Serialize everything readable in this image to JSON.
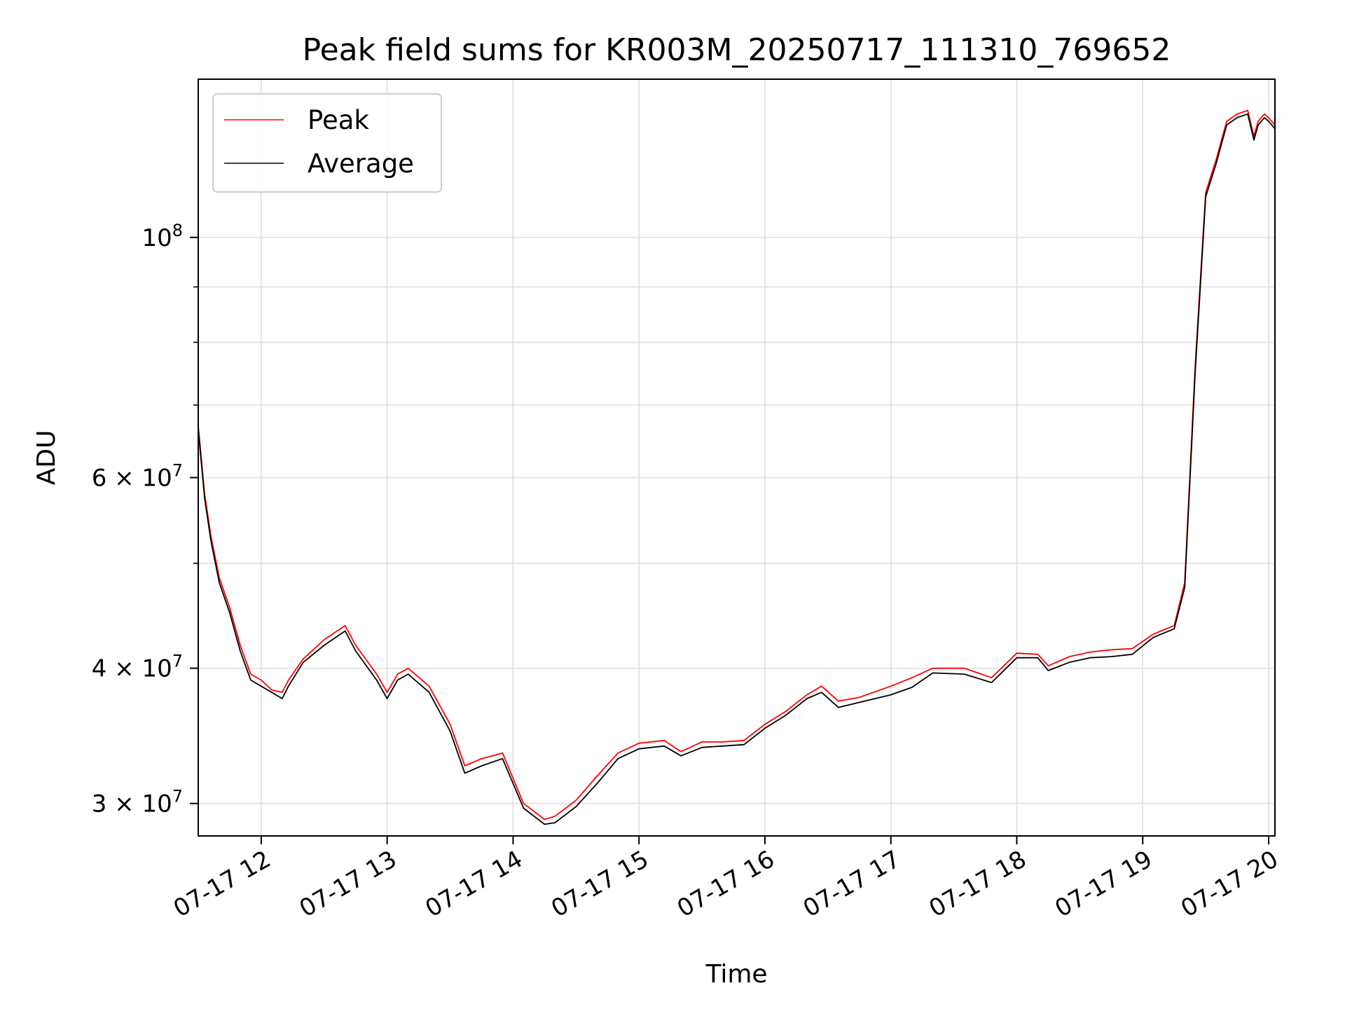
{
  "chart_data": {
    "type": "line",
    "title": "Peak field sums for KR003M_20250717_111310_769652",
    "xlabel": "Time",
    "ylabel": "ADU",
    "y_scale": "log",
    "ylim": [
      28000000,
      140000000
    ],
    "xlim": [
      "2025-07-17 11:30",
      "2025-07-17 20:03"
    ],
    "grid": true,
    "legend_position": "top-left",
    "x_tick_labels": [
      "07-17 12",
      "07-17 13",
      "07-17 14",
      "07-17 15",
      "07-17 16",
      "07-17 17",
      "07-17 18",
      "07-17 19",
      "07-17 20"
    ],
    "x_tick_times": [
      "2025-07-17 12:00",
      "2025-07-17 13:00",
      "2025-07-17 14:00",
      "2025-07-17 15:00",
      "2025-07-17 16:00",
      "2025-07-17 17:00",
      "2025-07-17 18:00",
      "2025-07-17 19:00",
      "2025-07-17 20:00"
    ],
    "y_ticks": [
      {
        "value": 30000000,
        "mantissa": "3",
        "exp": "7"
      },
      {
        "value": 40000000,
        "mantissa": "4",
        "exp": "7"
      },
      {
        "value": 60000000,
        "mantissa": "6",
        "exp": "7"
      },
      {
        "value": 100000000,
        "mantissa": "",
        "exp": "8"
      }
    ],
    "y_minor_ticks": [
      50000000,
      70000000,
      80000000,
      90000000
    ],
    "series": [
      {
        "name": "Peak",
        "color": "#ff0000",
        "x": [
          "2025-07-17 11:30",
          "2025-07-17 11:33",
          "2025-07-17 11:36",
          "2025-07-17 11:40",
          "2025-07-17 11:45",
          "2025-07-17 11:50",
          "2025-07-17 11:55",
          "2025-07-17 12:00",
          "2025-07-17 12:05",
          "2025-07-17 12:10",
          "2025-07-17 12:13",
          "2025-07-17 12:20",
          "2025-07-17 12:30",
          "2025-07-17 12:40",
          "2025-07-17 12:45",
          "2025-07-17 12:55",
          "2025-07-17 13:00",
          "2025-07-17 13:05",
          "2025-07-17 13:10",
          "2025-07-17 13:20",
          "2025-07-17 13:30",
          "2025-07-17 13:37",
          "2025-07-17 13:45",
          "2025-07-17 13:55",
          "2025-07-17 14:05",
          "2025-07-17 14:15",
          "2025-07-17 14:20",
          "2025-07-17 14:30",
          "2025-07-17 14:40",
          "2025-07-17 14:50",
          "2025-07-17 15:00",
          "2025-07-17 15:12",
          "2025-07-17 15:20",
          "2025-07-17 15:30",
          "2025-07-17 15:40",
          "2025-07-17 15:50",
          "2025-07-17 16:00",
          "2025-07-17 16:10",
          "2025-07-17 16:20",
          "2025-07-17 16:27",
          "2025-07-17 16:35",
          "2025-07-17 16:45",
          "2025-07-17 17:00",
          "2025-07-17 17:10",
          "2025-07-17 17:20",
          "2025-07-17 17:35",
          "2025-07-17 17:48",
          "2025-07-17 18:00",
          "2025-07-17 18:10",
          "2025-07-17 18:15",
          "2025-07-17 18:25",
          "2025-07-17 18:35",
          "2025-07-17 18:45",
          "2025-07-17 18:55",
          "2025-07-17 19:05",
          "2025-07-17 19:15",
          "2025-07-17 19:20",
          "2025-07-17 19:25",
          "2025-07-17 19:30",
          "2025-07-17 19:35",
          "2025-07-17 19:40",
          "2025-07-17 19:45",
          "2025-07-17 19:50",
          "2025-07-17 19:53",
          "2025-07-17 19:55",
          "2025-07-17 19:58",
          "2025-07-17 20:00",
          "2025-07-17 20:03"
        ],
        "values": [
          67000000,
          58000000,
          53000000,
          48500000,
          45500000,
          42000000,
          39500000,
          39000000,
          38200000,
          38000000,
          39000000,
          40800000,
          42500000,
          43800000,
          42000000,
          39500000,
          38000000,
          39500000,
          40000000,
          38500000,
          35500000,
          32500000,
          33000000,
          33400000,
          30000000,
          29000000,
          29200000,
          30200000,
          31800000,
          33400000,
          34100000,
          34300000,
          33500000,
          34200000,
          34200000,
          34300000,
          35500000,
          36500000,
          37800000,
          38500000,
          37300000,
          37600000,
          38500000,
          39200000,
          40000000,
          40000000,
          39200000,
          41300000,
          41200000,
          40200000,
          41000000,
          41400000,
          41600000,
          41700000,
          43000000,
          43800000,
          48000000,
          76000000,
          110000000,
          118000000,
          128000000,
          130000000,
          131000000,
          124000000,
          128000000,
          130000000,
          129000000,
          127000000
        ]
      },
      {
        "name": "Average",
        "color": "#000000",
        "x": [
          "2025-07-17 11:30",
          "2025-07-17 11:33",
          "2025-07-17 11:36",
          "2025-07-17 11:40",
          "2025-07-17 11:45",
          "2025-07-17 11:50",
          "2025-07-17 11:55",
          "2025-07-17 12:00",
          "2025-07-17 12:05",
          "2025-07-17 12:10",
          "2025-07-17 12:13",
          "2025-07-17 12:20",
          "2025-07-17 12:30",
          "2025-07-17 12:40",
          "2025-07-17 12:45",
          "2025-07-17 12:55",
          "2025-07-17 13:00",
          "2025-07-17 13:05",
          "2025-07-17 13:10",
          "2025-07-17 13:20",
          "2025-07-17 13:30",
          "2025-07-17 13:37",
          "2025-07-17 13:45",
          "2025-07-17 13:55",
          "2025-07-17 14:05",
          "2025-07-17 14:15",
          "2025-07-17 14:20",
          "2025-07-17 14:30",
          "2025-07-17 14:40",
          "2025-07-17 14:50",
          "2025-07-17 15:00",
          "2025-07-17 15:12",
          "2025-07-17 15:20",
          "2025-07-17 15:30",
          "2025-07-17 15:40",
          "2025-07-17 15:50",
          "2025-07-17 16:00",
          "2025-07-17 16:10",
          "2025-07-17 16:20",
          "2025-07-17 16:27",
          "2025-07-17 16:35",
          "2025-07-17 16:45",
          "2025-07-17 17:00",
          "2025-07-17 17:10",
          "2025-07-17 17:20",
          "2025-07-17 17:35",
          "2025-07-17 17:48",
          "2025-07-17 18:00",
          "2025-07-17 18:10",
          "2025-07-17 18:15",
          "2025-07-17 18:25",
          "2025-07-17 18:35",
          "2025-07-17 18:45",
          "2025-07-17 18:55",
          "2025-07-17 19:05",
          "2025-07-17 19:15",
          "2025-07-17 19:20",
          "2025-07-17 19:25",
          "2025-07-17 19:30",
          "2025-07-17 19:35",
          "2025-07-17 19:40",
          "2025-07-17 19:45",
          "2025-07-17 19:50",
          "2025-07-17 19:53",
          "2025-07-17 19:55",
          "2025-07-17 19:58",
          "2025-07-17 20:00",
          "2025-07-17 20:03"
        ],
        "values": [
          66500000,
          57500000,
          52500000,
          48000000,
          45000000,
          41500000,
          39000000,
          38500000,
          38000000,
          37500000,
          38500000,
          40500000,
          42000000,
          43300000,
          41500000,
          39000000,
          37500000,
          39000000,
          39500000,
          38000000,
          35000000,
          32000000,
          32500000,
          33000000,
          29700000,
          28700000,
          28800000,
          29800000,
          31300000,
          33000000,
          33700000,
          33900000,
          33200000,
          33800000,
          33900000,
          34000000,
          35200000,
          36200000,
          37500000,
          38000000,
          36800000,
          37200000,
          37800000,
          38400000,
          39600000,
          39500000,
          38800000,
          40900000,
          40900000,
          39800000,
          40500000,
          40900000,
          41000000,
          41200000,
          42700000,
          43500000,
          47500000,
          75000000,
          109000000,
          117000000,
          127000000,
          129000000,
          130000000,
          123000000,
          127000000,
          129000000,
          128000000,
          126000000
        ]
      }
    ]
  }
}
